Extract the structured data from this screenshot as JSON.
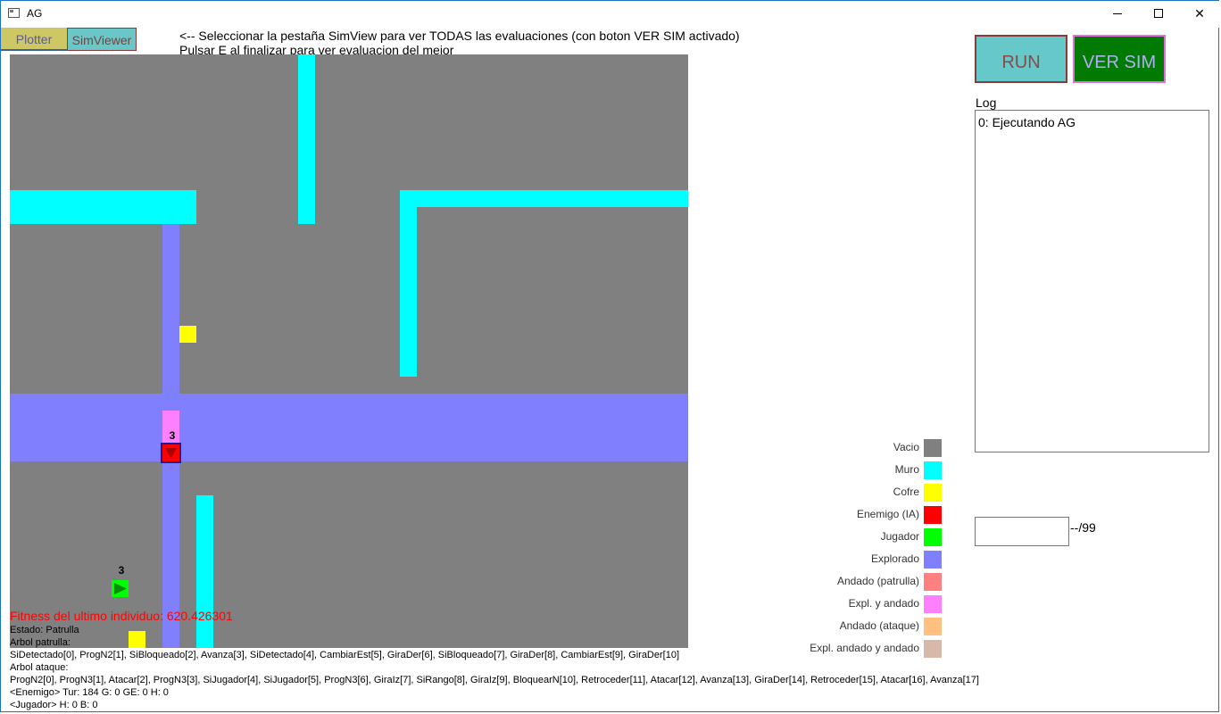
{
  "window": {
    "title": "AG"
  },
  "tabs": [
    {
      "label": "Plotter"
    },
    {
      "label": "SimViewer"
    }
  ],
  "instructions": {
    "line1": "<-- Seleccionar la pestaña SimView para ver TODAS las evaluaciones (con boton VER SIM activado)",
    "line2": "Pulsar E al finalizar para ver evaluacion del mejor"
  },
  "map": {
    "enemy_label": "3",
    "player_label": "3",
    "colors": {
      "empty": "#808080",
      "wall": "#00ffff",
      "chest": "#ffff00",
      "enemy": "#ff0000",
      "player": "#00ff00",
      "explored": "#8080ff",
      "explored_walked": "#ff80ff"
    }
  },
  "status": {
    "fitness": "Fitness del ultimo individuo: 620.426301",
    "estado": "Estado: Patrulla",
    "arbol_patrulla_label": "Arbol patrulla:",
    "arbol_patrulla": "SiDetectado[0], ProgN2[1], SiBloqueado[2], Avanza[3], SiDetectado[4], CambiarEst[5], GiraDer[6], SiBloqueado[7], GiraDer[8], CambiarEst[9], GiraDer[10]",
    "arbol_ataque_label": "Arbol ataque:",
    "arbol_ataque": "ProgN2[0], ProgN3[1], Atacar[2], ProgN3[3], SiJugador[4], SiJugador[5], ProgN3[6], GiraIz[7], SiRango[8], GiraIz[9], BloquearN[10], Retroceder[11], Atacar[12], Avanza[13], GiraDer[14], Retroceder[15], Atacar[16], Avanza[17]",
    "enemigo": "<Enemigo> Tur: 184 G: 0 GE: 0 H: 0",
    "jugador": "<Jugador> H: 0 B: 0"
  },
  "controls": {
    "run_label": "RUN",
    "versim_label": "VER SIM",
    "log_label": "Log",
    "log_entries": [
      "0: Ejecutando AG"
    ],
    "generation_value": "",
    "generation_total": "--/99"
  },
  "legend": [
    {
      "label": "Vacio",
      "color": "#808080"
    },
    {
      "label": "Muro",
      "color": "#00ffff"
    },
    {
      "label": "Cofre",
      "color": "#ffff00"
    },
    {
      "label": "Enemigo (IA)",
      "color": "#ff0000"
    },
    {
      "label": "Jugador",
      "color": "#00ff00"
    },
    {
      "label": "Explorado",
      "color": "#8080ff"
    },
    {
      "label": "Andado (patrulla)",
      "color": "#ff8080"
    },
    {
      "label": "Expl. y andado",
      "color": "#ff80ff"
    },
    {
      "label": "Andado (ataque)",
      "color": "#ffc080"
    },
    {
      "label": "Expl. andado y andado",
      "color": "#d8b8a8"
    }
  ]
}
